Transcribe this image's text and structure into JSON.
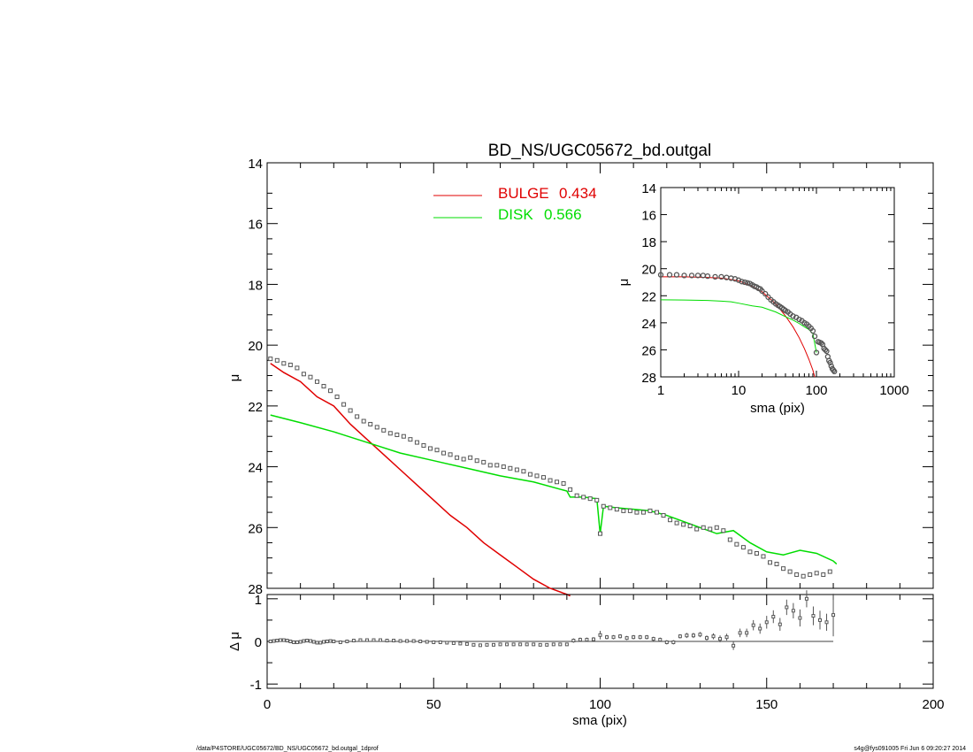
{
  "chart_data": [
    {
      "id": "main",
      "type": "scatter",
      "title": "BD_NS/UGC05672_bd.outgal",
      "xlabel": "",
      "ylabel": "μ",
      "xlim": [
        0,
        200
      ],
      "ylim": [
        28,
        14
      ],
      "y_reversed": true,
      "xticks": [
        0,
        50,
        100,
        150,
        200
      ],
      "yticks": [
        14,
        16,
        18,
        20,
        22,
        24,
        26,
        28
      ],
      "legend": {
        "placement": "top-center",
        "entries": [
          {
            "label": "BULGE",
            "value": "0.434",
            "color": "#e00000"
          },
          {
            "label": "DISK",
            "value": "0.566",
            "color": "#00dd00"
          }
        ]
      },
      "series": [
        {
          "name": "BULGE",
          "kind": "line",
          "color": "#e00000",
          "x": [
            1,
            5,
            10,
            15,
            20,
            25,
            30,
            35,
            40,
            45,
            50,
            55,
            60,
            65,
            70,
            75,
            80,
            85,
            90,
            91
          ],
          "y": [
            20.6,
            20.9,
            21.2,
            21.7,
            22.0,
            22.6,
            23.1,
            23.6,
            24.1,
            24.6,
            25.1,
            25.6,
            26.0,
            26.5,
            26.9,
            27.3,
            27.7,
            28.0,
            28.2,
            28.3
          ]
        },
        {
          "name": "DISK",
          "kind": "line",
          "color": "#00dd00",
          "x": [
            1,
            10,
            20,
            30,
            40,
            50,
            60,
            70,
            80,
            90,
            91,
            95,
            99,
            100,
            101,
            105,
            110,
            115,
            120,
            125,
            130,
            135,
            140,
            145,
            150,
            155,
            160,
            165,
            170,
            171
          ],
          "y": [
            22.3,
            22.55,
            22.85,
            23.2,
            23.55,
            23.8,
            24.05,
            24.3,
            24.5,
            24.8,
            25.0,
            25.0,
            25.05,
            26.2,
            25.3,
            25.35,
            25.4,
            25.45,
            25.6,
            25.8,
            26.0,
            26.2,
            26.1,
            26.5,
            26.8,
            26.9,
            26.75,
            26.85,
            27.1,
            27.2
          ]
        },
        {
          "name": "data",
          "kind": "points",
          "color": "#555555",
          "x": [
            1,
            3,
            5,
            7,
            9,
            11,
            13,
            15,
            17,
            19,
            21,
            23,
            25,
            27,
            29,
            31,
            33,
            35,
            37,
            39,
            41,
            43,
            45,
            47,
            49,
            51,
            53,
            55,
            57,
            59,
            61,
            63,
            65,
            67,
            69,
            71,
            73,
            75,
            77,
            79,
            81,
            83,
            85,
            87,
            89,
            91,
            93,
            95,
            97,
            99,
            100,
            101,
            103,
            105,
            107,
            109,
            111,
            113,
            115,
            117,
            119,
            121,
            123,
            125,
            127,
            129,
            131,
            133,
            135,
            137,
            139,
            141,
            143,
            145,
            147,
            149,
            151,
            153,
            155,
            157,
            159,
            161,
            163,
            165,
            167,
            169
          ],
          "y": [
            20.45,
            20.5,
            20.6,
            20.65,
            20.75,
            20.95,
            21.05,
            21.2,
            21.35,
            21.5,
            21.7,
            21.95,
            22.15,
            22.35,
            22.5,
            22.6,
            22.7,
            22.8,
            22.9,
            22.95,
            23.0,
            23.1,
            23.2,
            23.3,
            23.4,
            23.45,
            23.55,
            23.6,
            23.7,
            23.75,
            23.7,
            23.8,
            23.85,
            23.95,
            23.95,
            24.0,
            24.05,
            24.1,
            24.15,
            24.25,
            24.3,
            24.35,
            24.45,
            24.5,
            24.55,
            24.75,
            24.95,
            25.0,
            25.05,
            25.1,
            26.2,
            25.3,
            25.35,
            25.4,
            25.45,
            25.45,
            25.5,
            25.5,
            25.45,
            25.5,
            25.6,
            25.75,
            25.85,
            25.9,
            25.95,
            26.05,
            26.0,
            26.05,
            26.0,
            26.1,
            26.4,
            26.55,
            26.65,
            26.8,
            26.85,
            26.95,
            27.15,
            27.2,
            27.35,
            27.45,
            27.55,
            27.6,
            27.55,
            27.5,
            27.55,
            27.45
          ]
        }
      ]
    },
    {
      "id": "residual",
      "type": "scatter",
      "xlabel": "sma (pix)",
      "ylabel": "Δ μ",
      "xlim": [
        0,
        200
      ],
      "ylim": [
        -1.1,
        1.1
      ],
      "xticks": [
        0,
        50,
        100,
        150,
        200
      ],
      "yticks": [
        1,
        0,
        -1
      ],
      "zero_line": true,
      "series": [
        {
          "name": "residual",
          "kind": "points",
          "color": "#555555",
          "x": [
            1,
            2,
            3,
            4,
            5,
            6,
            7,
            8,
            9,
            10,
            11,
            12,
            13,
            14,
            15,
            16,
            17,
            18,
            19,
            20,
            22,
            24,
            26,
            28,
            30,
            32,
            34,
            36,
            38,
            40,
            42,
            44,
            46,
            48,
            50,
            52,
            54,
            56,
            58,
            60,
            62,
            64,
            66,
            68,
            70,
            72,
            74,
            76,
            78,
            80,
            82,
            84,
            86,
            88,
            90,
            92,
            94,
            96,
            98,
            100,
            102,
            104,
            106,
            108,
            110,
            112,
            114,
            116,
            118,
            120,
            122,
            124,
            126,
            128,
            130,
            132,
            134,
            136,
            138,
            140,
            142,
            144,
            146,
            148,
            150,
            152,
            154,
            156,
            158,
            160,
            162,
            164,
            166,
            168,
            170
          ],
          "y": [
            0,
            0.01,
            0.02,
            0.03,
            0.03,
            0.02,
            0,
            -0.02,
            -0.02,
            -0.01,
            0.01,
            0.02,
            0.01,
            -0.01,
            -0.03,
            -0.03,
            -0.01,
            0,
            0.01,
            0,
            -0.02,
            0,
            0.02,
            0.03,
            0.03,
            0.03,
            0.03,
            0.02,
            0.02,
            0.01,
            0.01,
            0.01,
            0,
            -0.01,
            -0.02,
            -0.02,
            -0.03,
            -0.04,
            -0.05,
            -0.06,
            -0.08,
            -0.09,
            -0.08,
            -0.08,
            -0.07,
            -0.07,
            -0.07,
            -0.07,
            -0.07,
            -0.07,
            -0.08,
            -0.08,
            -0.07,
            -0.07,
            -0.07,
            0.02,
            0.04,
            0.04,
            0.05,
            0.15,
            0.1,
            0.1,
            0.12,
            0.08,
            0.1,
            0.1,
            0.1,
            0.06,
            0.04,
            -0.02,
            -0.02,
            0.12,
            0.14,
            0.14,
            0.16,
            0.08,
            0.12,
            0.06,
            0.1,
            -0.1,
            0.2,
            0.2,
            0.38,
            0.3,
            0.45,
            0.58,
            0.4,
            0.8,
            0.72,
            0.55,
            1.0,
            0.6,
            0.5,
            0.45,
            0.62
          ],
          "err": [
            0,
            0,
            0,
            0,
            0,
            0,
            0,
            0,
            0,
            0,
            0,
            0,
            0,
            0,
            0,
            0,
            0,
            0,
            0,
            0,
            0,
            0,
            0,
            0,
            0,
            0,
            0,
            0,
            0,
            0,
            0,
            0,
            0,
            0,
            0,
            0,
            0,
            0,
            0,
            0,
            0,
            0,
            0,
            0,
            0,
            0,
            0,
            0,
            0,
            0,
            0,
            0,
            0,
            0,
            0,
            0.05,
            0.05,
            0.05,
            0.05,
            0.1,
            0.05,
            0.05,
            0.05,
            0.05,
            0.05,
            0.05,
            0.05,
            0.05,
            0.05,
            0.05,
            0.05,
            0.05,
            0.06,
            0.06,
            0.06,
            0.06,
            0.07,
            0.08,
            0.08,
            0.1,
            0.1,
            0.1,
            0.12,
            0.12,
            0.15,
            0.15,
            0.15,
            0.18,
            0.18,
            0.2,
            0.2,
            0.22,
            0.22,
            0.2,
            0.5
          ]
        }
      ]
    },
    {
      "id": "inset",
      "type": "scatter",
      "xlabel": "sma (pix)",
      "ylabel": "μ",
      "xscale": "log",
      "xlim": [
        1,
        1000
      ],
      "ylim": [
        28,
        14
      ],
      "y_reversed": true,
      "xtick_labels": [
        "1",
        "10",
        "100",
        "1000"
      ],
      "yticks": [
        14,
        16,
        18,
        20,
        22,
        24,
        26,
        28
      ],
      "series": [
        {
          "name": "BULGE",
          "kind": "line",
          "color": "#e00000",
          "x": [
            1,
            2,
            4,
            6,
            8,
            10,
            15,
            20,
            30,
            40,
            50,
            60,
            70,
            80,
            90,
            95
          ],
          "y": [
            20.6,
            20.6,
            20.65,
            20.7,
            20.8,
            20.9,
            21.3,
            21.7,
            22.6,
            23.5,
            24.3,
            25.1,
            25.9,
            26.7,
            27.5,
            28
          ]
        },
        {
          "name": "DISK",
          "kind": "line",
          "color": "#00dd00",
          "x": [
            1,
            2,
            4,
            6,
            8,
            10,
            15,
            20,
            30,
            40,
            50,
            60,
            70,
            80,
            90,
            100
          ],
          "y": [
            22.3,
            22.32,
            22.35,
            22.4,
            22.45,
            22.55,
            22.75,
            22.85,
            23.2,
            23.55,
            23.8,
            24.05,
            24.3,
            24.5,
            24.8,
            26.2
          ]
        },
        {
          "name": "data",
          "kind": "points",
          "color": "#555555",
          "x": [
            1,
            1.3,
            1.6,
            2,
            2.5,
            3,
            3.5,
            4,
            5,
            6,
            7,
            8,
            9,
            10,
            11,
            12,
            13,
            14,
            15,
            16,
            17,
            18,
            19,
            20,
            22,
            24,
            26,
            28,
            30,
            32,
            34,
            36,
            38,
            40,
            43,
            46,
            50,
            55,
            60,
            65,
            70,
            75,
            80,
            85,
            90,
            95,
            100,
            105,
            110,
            115,
            120,
            125,
            130,
            135,
            140,
            145,
            150,
            155,
            160,
            165,
            170
          ],
          "y": [
            20.45,
            20.45,
            20.45,
            20.5,
            20.5,
            20.5,
            20.5,
            20.55,
            20.6,
            20.6,
            20.65,
            20.7,
            20.75,
            20.85,
            20.95,
            21.0,
            21.05,
            21.1,
            21.2,
            21.3,
            21.35,
            21.45,
            21.5,
            21.65,
            21.85,
            22.1,
            22.3,
            22.45,
            22.6,
            22.7,
            22.8,
            22.9,
            23.0,
            23.1,
            23.2,
            23.35,
            23.5,
            23.6,
            23.75,
            23.85,
            24.0,
            24.1,
            24.25,
            24.4,
            24.6,
            25.0,
            26.2,
            25.4,
            25.45,
            25.5,
            25.6,
            25.9,
            26.0,
            26.1,
            26.5,
            26.8,
            26.95,
            27.2,
            27.4,
            27.5,
            27.6
          ]
        }
      ]
    }
  ],
  "footer": {
    "left": "/data/P4STORE/UGC05672/BD_NS/UGC05672_bd.outgal_1dprof",
    "right": "s4g@fys091005  Fri Jun  6 09:20:27 2014"
  }
}
